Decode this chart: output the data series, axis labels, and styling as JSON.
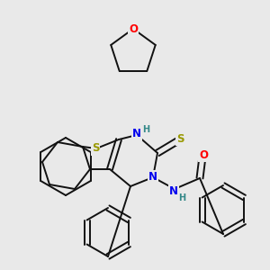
{
  "bg_color": "#e9e9e9",
  "atom_colors": {
    "S": "#999900",
    "N": "#0000ee",
    "O": "#ff0000",
    "C": "#111111",
    "H": "#338888"
  },
  "bond_color": "#111111",
  "bond_width": 1.4
}
